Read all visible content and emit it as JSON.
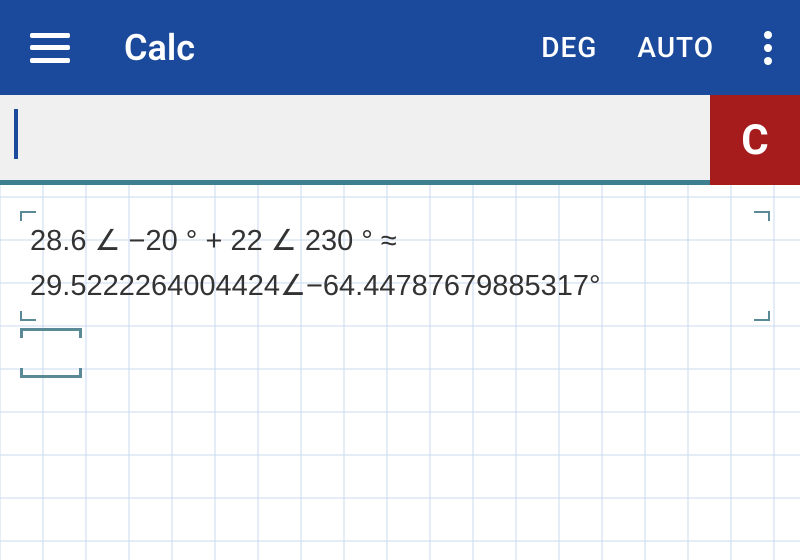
{
  "colors": {
    "header_bg": "#1b4a9c",
    "input_underline": "#3d7f8f",
    "cursor": "#1b4a9c",
    "clear_bg": "#a61c1c",
    "grid_line": "#c9daf2",
    "bracket": "#5a8a95",
    "text": "#333333"
  },
  "header": {
    "title": "Calc",
    "mode_angle": "DEG",
    "mode_format": "AUTO"
  },
  "input": {
    "value": "",
    "clear_label": "C"
  },
  "history": {
    "expression": "28.6 ∠ −20 ° + 22 ∠ 230 °  ≈",
    "result": "29.5222264004424∠−64.44787679885317°"
  },
  "grid": {
    "cell_size": 43
  },
  "fonts": {
    "title_size": 36,
    "mode_size": 28,
    "history_size": 29,
    "clear_size": 42
  }
}
